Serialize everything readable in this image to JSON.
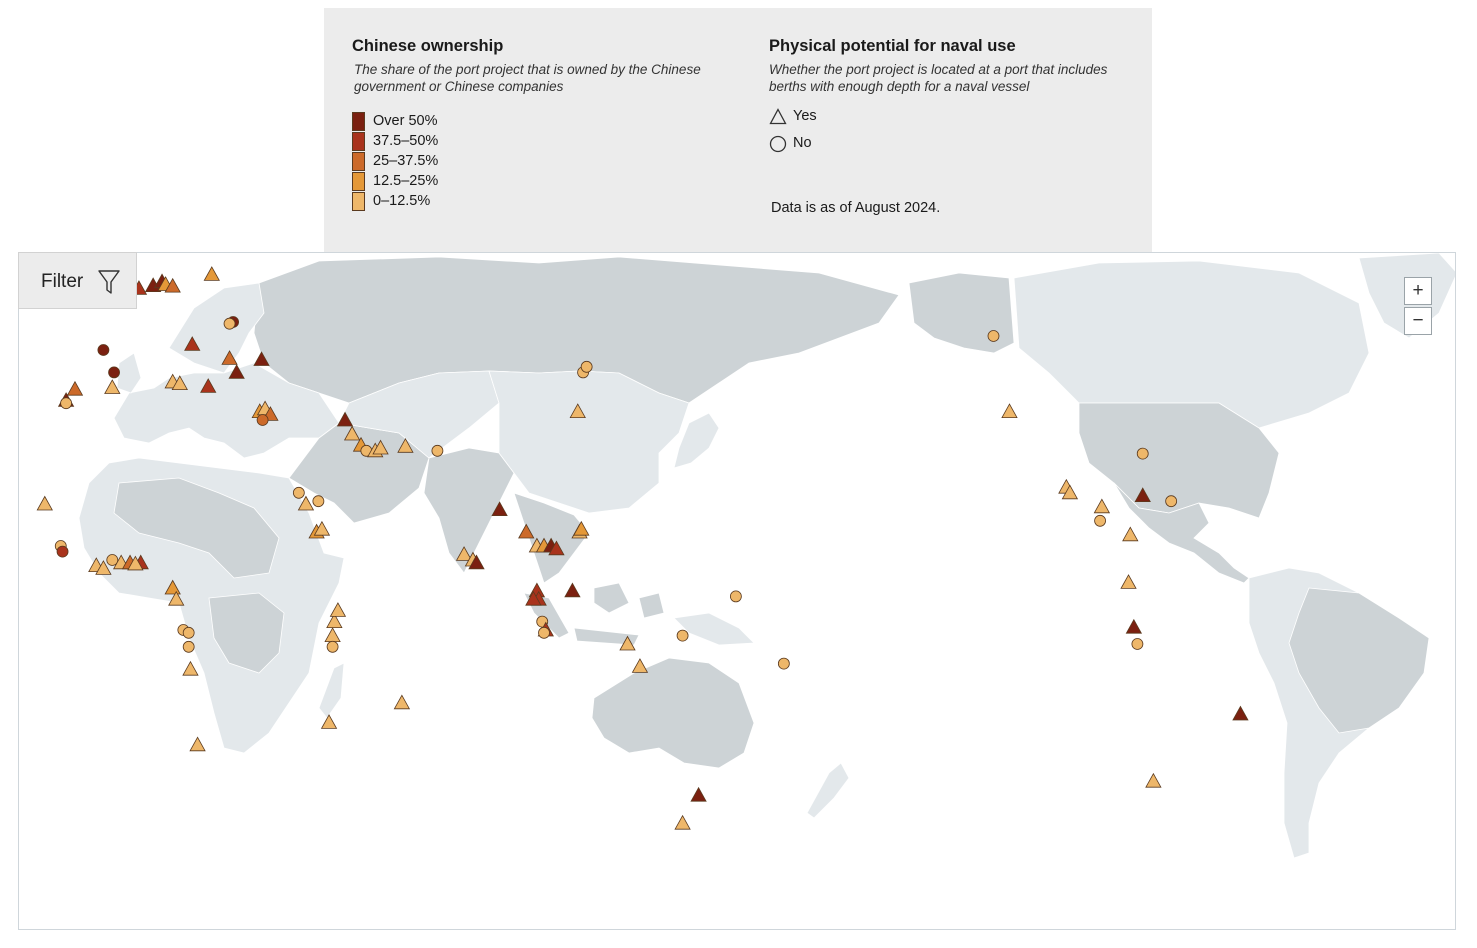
{
  "legend": {
    "ownership": {
      "title": "Chinese ownership",
      "description": "The share of the port project that is owned by the Chinese government or Chinese companies",
      "levels": [
        {
          "label": "Over 50%",
          "color": "#7b2010"
        },
        {
          "label": "37.5–50%",
          "color": "#a9331c"
        },
        {
          "label": "25–37.5%",
          "color": "#cc6a2a"
        },
        {
          "label": "12.5–25%",
          "color": "#e49838"
        },
        {
          "label": "0–12.5%",
          "color": "#eeb76a"
        }
      ]
    },
    "naval": {
      "title": "Physical potential for naval use",
      "description": "Whether the port project is located at a port that includes berths with enough depth for a naval vessel",
      "yes_label": "Yes",
      "no_label": "No"
    },
    "as_of": "Data is as of August 2024."
  },
  "filter": {
    "label": "Filter",
    "icon": "funnel-icon"
  },
  "zoom": {
    "in_label": "+",
    "out_label": "−"
  },
  "colors": {
    "land_dark": "#cdd3d6",
    "land_light": "#e3e8eb",
    "ocean": "#ffffff",
    "marker_stroke": "#5a3a1f"
  },
  "ports": [
    {
      "lon": -9.5,
      "lat": 52.5,
      "shape": "triangle",
      "level": 1
    },
    {
      "lon": -3.0,
      "lat": 53.5,
      "shape": "triangle",
      "level": 1
    },
    {
      "lon": 1.0,
      "lat": 54.0,
      "shape": "triangle",
      "level": 0
    },
    {
      "lon": 3.5,
      "lat": 54.7,
      "shape": "triangle",
      "level": 0
    },
    {
      "lon": 4.5,
      "lat": 54.2,
      "shape": "triangle",
      "level": 3
    },
    {
      "lon": 6.5,
      "lat": 53.9,
      "shape": "triangle",
      "level": 2
    },
    {
      "lon": 17.5,
      "lat": 56.0,
      "shape": "triangle",
      "level": 3
    },
    {
      "lon": 26.5,
      "lat": 62.5,
      "shape": "triangle",
      "level": 4
    },
    {
      "lon": 23.5,
      "lat": 47.5,
      "shape": "circle",
      "level": 0
    },
    {
      "lon": 22.5,
      "lat": 47.2,
      "shape": "circle",
      "level": 4
    },
    {
      "lon": -13.0,
      "lat": 42.5,
      "shape": "circle",
      "level": 0
    },
    {
      "lon": -10.0,
      "lat": 38.5,
      "shape": "circle",
      "level": 0
    },
    {
      "lon": 12.0,
      "lat": 43.5,
      "shape": "triangle",
      "level": 1
    },
    {
      "lon": 22.5,
      "lat": 41.0,
      "shape": "triangle",
      "level": 2
    },
    {
      "lon": 24.5,
      "lat": 38.5,
      "shape": "triangle",
      "level": 0
    },
    {
      "lon": 31.5,
      "lat": 40.8,
      "shape": "triangle",
      "level": 0
    },
    {
      "lon": -21.0,
      "lat": 35.5,
      "shape": "triangle",
      "level": 2
    },
    {
      "lon": -23.5,
      "lat": 33.5,
      "shape": "triangle",
      "level": 0
    },
    {
      "lon": -23.5,
      "lat": 33.0,
      "shape": "circle",
      "level": 4
    },
    {
      "lon": -10.5,
      "lat": 35.8,
      "shape": "triangle",
      "level": 4
    },
    {
      "lon": 6.5,
      "lat": 36.8,
      "shape": "triangle",
      "level": 4
    },
    {
      "lon": 8.5,
      "lat": 36.5,
      "shape": "triangle",
      "level": 4
    },
    {
      "lon": 16.5,
      "lat": 36.0,
      "shape": "triangle",
      "level": 1
    },
    {
      "lon": 31.0,
      "lat": 31.5,
      "shape": "triangle",
      "level": 3
    },
    {
      "lon": 32.5,
      "lat": 32.0,
      "shape": "triangle",
      "level": 4
    },
    {
      "lon": 34.0,
      "lat": 31.0,
      "shape": "triangle",
      "level": 2
    },
    {
      "lon": 31.8,
      "lat": 30.0,
      "shape": "circle",
      "level": 2
    },
    {
      "lon": 55.0,
      "lat": 30.0,
      "shape": "triangle",
      "level": 0
    },
    {
      "lon": 57.0,
      "lat": 27.5,
      "shape": "triangle",
      "level": 4
    },
    {
      "lon": 59.5,
      "lat": 25.5,
      "shape": "triangle",
      "level": 3
    },
    {
      "lon": 61.0,
      "lat": 24.5,
      "shape": "circle",
      "level": 4
    },
    {
      "lon": 63.5,
      "lat": 24.5,
      "shape": "triangle",
      "level": 4
    },
    {
      "lon": 65.0,
      "lat": 25.0,
      "shape": "triangle",
      "level": 4
    },
    {
      "lon": 72.0,
      "lat": 25.3,
      "shape": "triangle",
      "level": 4
    },
    {
      "lon": 81.0,
      "lat": 24.5,
      "shape": "circle",
      "level": 4
    },
    {
      "lon": 42.0,
      "lat": 17.0,
      "shape": "circle",
      "level": 4
    },
    {
      "lon": 44.0,
      "lat": 15.0,
      "shape": "triangle",
      "level": 4
    },
    {
      "lon": 47.5,
      "lat": 15.5,
      "shape": "circle",
      "level": 4
    },
    {
      "lon": 47.0,
      "lat": 10.0,
      "shape": "triangle",
      "level": 3
    },
    {
      "lon": 48.5,
      "lat": 10.5,
      "shape": "triangle",
      "level": 4
    },
    {
      "lon": -29.5,
      "lat": 15.0,
      "shape": "triangle",
      "level": 4
    },
    {
      "lon": -25.0,
      "lat": 7.5,
      "shape": "circle",
      "level": 4
    },
    {
      "lon": -24.5,
      "lat": 6.5,
      "shape": "circle",
      "level": 1
    },
    {
      "lon": -15.0,
      "lat": 4.0,
      "shape": "triangle",
      "level": 4
    },
    {
      "lon": -13.0,
      "lat": 3.5,
      "shape": "triangle",
      "level": 4
    },
    {
      "lon": -10.5,
      "lat": 5.0,
      "shape": "circle",
      "level": 4
    },
    {
      "lon": -8.0,
      "lat": 4.5,
      "shape": "triangle",
      "level": 4
    },
    {
      "lon": -5.5,
      "lat": 4.5,
      "shape": "triangle",
      "level": 2
    },
    {
      "lon": -2.5,
      "lat": 4.5,
      "shape": "triangle",
      "level": 1
    },
    {
      "lon": -4.0,
      "lat": 4.3,
      "shape": "triangle",
      "level": 4
    },
    {
      "lon": 6.5,
      "lat": 0.0,
      "shape": "triangle",
      "level": 3
    },
    {
      "lon": 7.5,
      "lat": -2.0,
      "shape": "triangle",
      "level": 4
    },
    {
      "lon": 9.5,
      "lat": -7.5,
      "shape": "circle",
      "level": 4
    },
    {
      "lon": 11.0,
      "lat": -8.0,
      "shape": "circle",
      "level": 4
    },
    {
      "lon": 11.0,
      "lat": -10.5,
      "shape": "circle",
      "level": 4
    },
    {
      "lon": 11.5,
      "lat": -14.5,
      "shape": "triangle",
      "level": 4
    },
    {
      "lon": 13.5,
      "lat": -28.0,
      "shape": "triangle",
      "level": 4
    },
    {
      "lon": 52.0,
      "lat": -6.0,
      "shape": "triangle",
      "level": 4
    },
    {
      "lon": 53.0,
      "lat": -4.0,
      "shape": "triangle",
      "level": 4
    },
    {
      "lon": 51.5,
      "lat": -8.5,
      "shape": "triangle",
      "level": 4
    },
    {
      "lon": 51.5,
      "lat": -10.5,
      "shape": "circle",
      "level": 4
    },
    {
      "lon": 50.5,
      "lat": -24.0,
      "shape": "triangle",
      "level": 4
    },
    {
      "lon": 71.0,
      "lat": -20.5,
      "shape": "triangle",
      "level": 4
    },
    {
      "lon": 88.5,
      "lat": 6.0,
      "shape": "triangle",
      "level": 4
    },
    {
      "lon": 91.0,
      "lat": 5.0,
      "shape": "triangle",
      "level": 4
    },
    {
      "lon": 92.0,
      "lat": 4.5,
      "shape": "triangle",
      "level": 0
    },
    {
      "lon": 98.5,
      "lat": 14.0,
      "shape": "triangle",
      "level": 0
    },
    {
      "lon": 106.0,
      "lat": 10.0,
      "shape": "triangle",
      "level": 2
    },
    {
      "lon": 109.0,
      "lat": 7.5,
      "shape": "triangle",
      "level": 4
    },
    {
      "lon": 111.0,
      "lat": 7.5,
      "shape": "triangle",
      "level": 3
    },
    {
      "lon": 113.0,
      "lat": 7.5,
      "shape": "triangle",
      "level": 0
    },
    {
      "lon": 114.5,
      "lat": 7.0,
      "shape": "triangle",
      "level": 1
    },
    {
      "lon": 121.0,
      "lat": 10.0,
      "shape": "triangle",
      "level": 4
    },
    {
      "lon": 121.5,
      "lat": 10.5,
      "shape": "triangle",
      "level": 3
    },
    {
      "lon": 109.0,
      "lat": -0.5,
      "shape": "triangle",
      "level": 1
    },
    {
      "lon": 109.5,
      "lat": -2.0,
      "shape": "triangle",
      "level": 1
    },
    {
      "lon": 108.0,
      "lat": -2.0,
      "shape": "triangle",
      "level": 1
    },
    {
      "lon": 110.5,
      "lat": -6.0,
      "shape": "circle",
      "level": 4
    },
    {
      "lon": 111.5,
      "lat": -7.5,
      "shape": "triangle",
      "level": 1
    },
    {
      "lon": 111.0,
      "lat": -8.0,
      "shape": "circle",
      "level": 4
    },
    {
      "lon": 119.0,
      "lat": -0.5,
      "shape": "triangle",
      "level": 0
    },
    {
      "lon": 134.5,
      "lat": -10.0,
      "shape": "triangle",
      "level": 4
    },
    {
      "lon": 138.0,
      "lat": -14.0,
      "shape": "triangle",
      "level": 4
    },
    {
      "lon": 150.0,
      "lat": -8.5,
      "shape": "circle",
      "level": 4
    },
    {
      "lon": 154.5,
      "lat": -37.0,
      "shape": "triangle",
      "level": 0
    },
    {
      "lon": 150.0,
      "lat": -42.0,
      "shape": "triangle",
      "level": 4
    },
    {
      "lon": 122.0,
      "lat": 38.5,
      "shape": "circle",
      "level": 4
    },
    {
      "lon": 123.0,
      "lat": 39.5,
      "shape": "circle",
      "level": 4
    },
    {
      "lon": 120.5,
      "lat": 31.5,
      "shape": "triangle",
      "level": 4
    },
    {
      "lon": 165.0,
      "lat": -1.5,
      "shape": "circle",
      "level": 4
    },
    {
      "lon": 178.5,
      "lat": -13.5,
      "shape": "circle",
      "level": 4
    },
    {
      "lon": -122.5,
      "lat": 45.0,
      "shape": "circle",
      "level": 4
    },
    {
      "lon": -118.0,
      "lat": 31.5,
      "shape": "triangle",
      "level": 4
    },
    {
      "lon": -102.0,
      "lat": 18.0,
      "shape": "triangle",
      "level": 4
    },
    {
      "lon": -101.0,
      "lat": 17.0,
      "shape": "triangle",
      "level": 4
    },
    {
      "lon": -92.0,
      "lat": 14.5,
      "shape": "triangle",
      "level": 4
    },
    {
      "lon": -92.5,
      "lat": 12.0,
      "shape": "circle",
      "level": 4
    },
    {
      "lon": -80.5,
      "lat": 24.0,
      "shape": "circle",
      "level": 4
    },
    {
      "lon": -80.5,
      "lat": 16.5,
      "shape": "triangle",
      "level": 0
    },
    {
      "lon": -72.5,
      "lat": 15.5,
      "shape": "circle",
      "level": 4
    },
    {
      "lon": -84.0,
      "lat": 9.5,
      "shape": "triangle",
      "level": 4
    },
    {
      "lon": -84.5,
      "lat": 1.0,
      "shape": "triangle",
      "level": 4
    },
    {
      "lon": -83.0,
      "lat": -7.0,
      "shape": "triangle",
      "level": 0
    },
    {
      "lon": -82.0,
      "lat": -10.0,
      "shape": "circle",
      "level": 4
    },
    {
      "lon": -77.5,
      "lat": -34.5,
      "shape": "triangle",
      "level": 4
    },
    {
      "lon": -53.0,
      "lat": -22.5,
      "shape": "triangle",
      "level": 0
    }
  ]
}
